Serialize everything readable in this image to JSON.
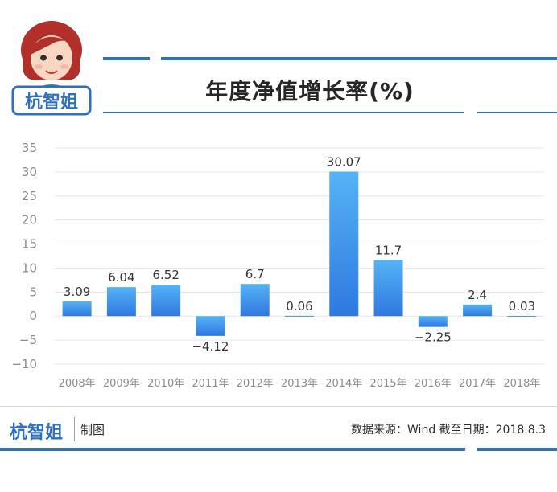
{
  "header": {
    "brand_text": "杭智姐",
    "title": "年度净值增长率(%)"
  },
  "footer": {
    "brand_text": "杭智姐",
    "credit": "制图",
    "source": "数据来源：Wind 截至日期：2018.8.3"
  },
  "colors": {
    "accent": "#2f6fbd",
    "bar_top": "#56b3f5",
    "bar_bottom": "#2e78e0",
    "grid": "#e6e6e6"
  },
  "chart_data": {
    "type": "bar",
    "title": "年度净值增长率(%)",
    "categories": [
      "2008年",
      "2009年",
      "2010年",
      "2011年",
      "2012年",
      "2013年",
      "2014年",
      "2015年",
      "2016年",
      "2017年",
      "2018年"
    ],
    "values": [
      3.09,
      6.04,
      6.52,
      -4.12,
      6.7,
      0.06,
      30.07,
      11.7,
      -2.25,
      2.4,
      0.03
    ],
    "value_labels": [
      "3.09",
      "6.04",
      "6.52",
      "−4.12",
      "6.7",
      "0.06",
      "30.07",
      "11.7",
      "−2.25",
      "2.4",
      "0.03"
    ],
    "y_ticks": [
      35,
      30,
      25,
      20,
      15,
      10,
      5,
      0,
      -5,
      -10
    ],
    "y_tick_labels": [
      "35",
      "30",
      "25",
      "20",
      "15",
      "10",
      "5",
      "0",
      "−5",
      "−10"
    ],
    "ylim": [
      -10,
      35
    ],
    "grid": true
  }
}
